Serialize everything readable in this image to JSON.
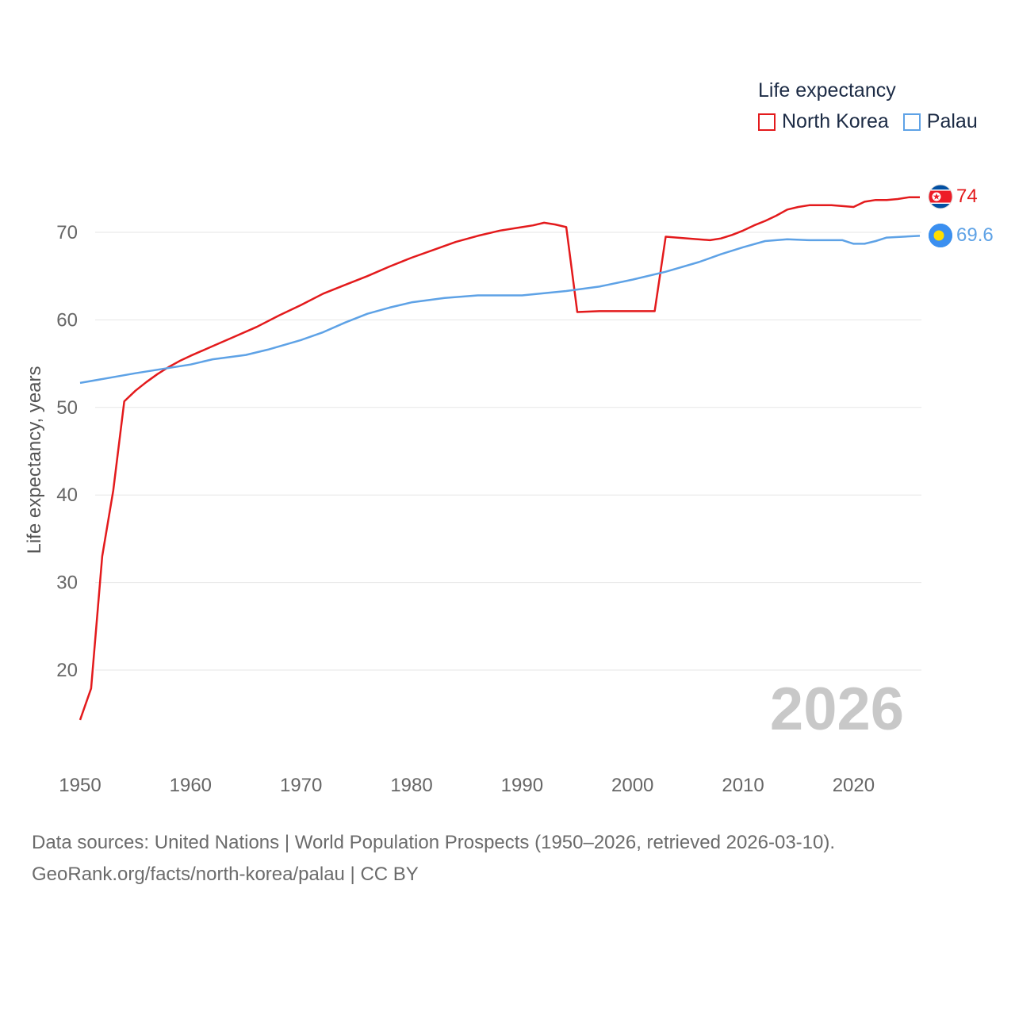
{
  "legend": {
    "title": "Life expectancy",
    "items": [
      {
        "label": "North Korea",
        "color": "#e31a1c"
      },
      {
        "label": "Palau",
        "color": "#5ea2e6"
      }
    ]
  },
  "chart_data": {
    "type": "line",
    "title": "",
    "xlabel": "",
    "ylabel": "Life expectancy, years",
    "xlim": [
      1950,
      2026
    ],
    "ylim": [
      11.5,
      78
    ],
    "x_ticks": [
      1950,
      1960,
      1970,
      1980,
      1990,
      2000,
      2010,
      2020
    ],
    "y_ticks": [
      20,
      30,
      40,
      50,
      60,
      70
    ],
    "year_label": "2026",
    "series": [
      {
        "name": "North Korea",
        "color": "#e31a1c",
        "end_label": "74",
        "points": [
          [
            1950,
            14.3
          ],
          [
            1951,
            17.9
          ],
          [
            1952,
            33.0
          ],
          [
            1953,
            40.5
          ],
          [
            1954,
            50.7
          ],
          [
            1955,
            51.9
          ],
          [
            1956,
            52.9
          ],
          [
            1957,
            53.8
          ],
          [
            1958,
            54.6
          ],
          [
            1959,
            55.3
          ],
          [
            1960,
            55.9
          ],
          [
            1962,
            57.0
          ],
          [
            1964,
            58.1
          ],
          [
            1966,
            59.2
          ],
          [
            1968,
            60.5
          ],
          [
            1970,
            61.7
          ],
          [
            1972,
            63.0
          ],
          [
            1974,
            64.0
          ],
          [
            1976,
            65.0
          ],
          [
            1978,
            66.1
          ],
          [
            1980,
            67.1
          ],
          [
            1982,
            68.0
          ],
          [
            1984,
            68.9
          ],
          [
            1986,
            69.6
          ],
          [
            1988,
            70.2
          ],
          [
            1990,
            70.6
          ],
          [
            1991,
            70.8
          ],
          [
            1992,
            71.1
          ],
          [
            1993,
            70.9
          ],
          [
            1994,
            70.6
          ],
          [
            1995,
            60.9
          ],
          [
            1997,
            61.0
          ],
          [
            2000,
            61.0
          ],
          [
            2002,
            61.0
          ],
          [
            2003,
            69.5
          ],
          [
            2005,
            69.3
          ],
          [
            2007,
            69.1
          ],
          [
            2008,
            69.3
          ],
          [
            2009,
            69.7
          ],
          [
            2010,
            70.2
          ],
          [
            2011,
            70.8
          ],
          [
            2012,
            71.3
          ],
          [
            2013,
            71.9
          ],
          [
            2014,
            72.6
          ],
          [
            2015,
            72.9
          ],
          [
            2016,
            73.1
          ],
          [
            2018,
            73.1
          ],
          [
            2019,
            73.0
          ],
          [
            2020,
            72.9
          ],
          [
            2021,
            73.5
          ],
          [
            2022,
            73.7
          ],
          [
            2023,
            73.7
          ],
          [
            2024,
            73.8
          ],
          [
            2025,
            74.0
          ],
          [
            2026,
            74.0
          ]
        ]
      },
      {
        "name": "Palau",
        "color": "#5ea2e6",
        "end_label": "69.6",
        "points": [
          [
            1950,
            52.8
          ],
          [
            1955,
            53.9
          ],
          [
            1960,
            54.9
          ],
          [
            1962,
            55.5
          ],
          [
            1965,
            56.0
          ],
          [
            1967,
            56.6
          ],
          [
            1970,
            57.7
          ],
          [
            1972,
            58.6
          ],
          [
            1974,
            59.7
          ],
          [
            1976,
            60.7
          ],
          [
            1978,
            61.4
          ],
          [
            1980,
            62.0
          ],
          [
            1983,
            62.5
          ],
          [
            1986,
            62.8
          ],
          [
            1990,
            62.8
          ],
          [
            1994,
            63.3
          ],
          [
            1997,
            63.8
          ],
          [
            2000,
            64.6
          ],
          [
            2003,
            65.5
          ],
          [
            2006,
            66.6
          ],
          [
            2008,
            67.5
          ],
          [
            2010,
            68.3
          ],
          [
            2012,
            69.0
          ],
          [
            2014,
            69.2
          ],
          [
            2016,
            69.1
          ],
          [
            2019,
            69.1
          ],
          [
            2020,
            68.7
          ],
          [
            2021,
            68.7
          ],
          [
            2022,
            69.0
          ],
          [
            2023,
            69.4
          ],
          [
            2026,
            69.6
          ]
        ]
      }
    ]
  },
  "footer": {
    "line1": "Data sources: United Nations | World Population Prospects (1950–2026, retrieved 2026-03-10).",
    "line2": "GeoRank.org/facts/north-korea/palau | CC BY"
  }
}
